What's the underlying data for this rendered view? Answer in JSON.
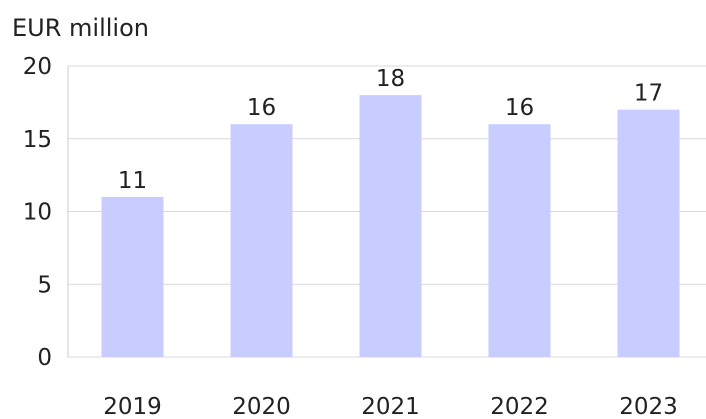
{
  "chart_data": {
    "type": "bar",
    "title": "",
    "unit_label": "EUR million",
    "xlabel": "",
    "ylabel": "",
    "categories": [
      "2019",
      "2020",
      "2021",
      "2022",
      "2023"
    ],
    "values": [
      11,
      16,
      18,
      16,
      17
    ],
    "data_labels": [
      "11",
      "16",
      "18",
      "16",
      "17"
    ],
    "ylim": [
      0,
      20
    ],
    "y_ticks": [
      0,
      5,
      10,
      15,
      20
    ],
    "y_tick_labels": [
      "0",
      "5",
      "10",
      "15",
      "20"
    ],
    "grid": "horizontal",
    "legend": "none",
    "colors": {
      "bar": "#c8ccff",
      "grid": "#d9d9d9",
      "axis": "#cccccc",
      "text": "#222222"
    }
  }
}
